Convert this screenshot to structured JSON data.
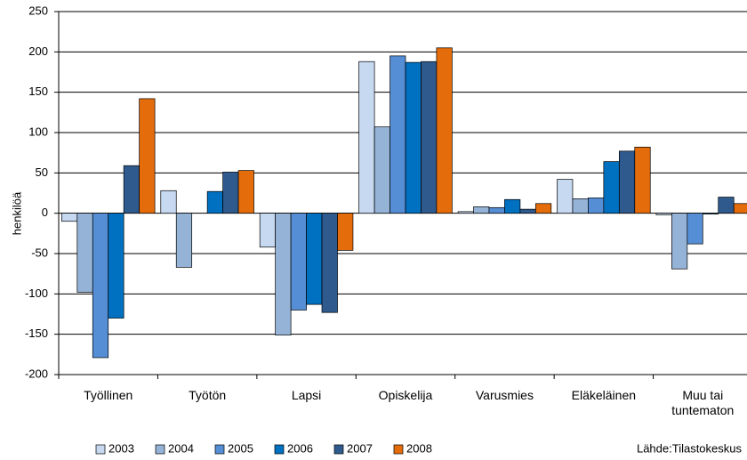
{
  "chart_data": {
    "type": "bar",
    "y_label": "henkilöä",
    "source": "Lähde:Tilastokeskus",
    "categories": [
      "Työllinen",
      "Työtön",
      "Lapsi",
      "Opiskelija",
      "Varusmies",
      "Eläkeläinen",
      "Muu tai tuntematon"
    ],
    "series": [
      {
        "name": "2003",
        "color": "#c6d9f1",
        "values": [
          -10,
          28,
          -42,
          188,
          2,
          42,
          -2
        ]
      },
      {
        "name": "2004",
        "color": "#95b3d7",
        "values": [
          -98,
          -67,
          -151,
          107,
          8,
          18,
          -69
        ]
      },
      {
        "name": "2005",
        "color": "#558ed5",
        "values": [
          -179,
          0,
          -120,
          195,
          7,
          19,
          -38
        ]
      },
      {
        "name": "2006",
        "color": "#0070c0",
        "values": [
          -130,
          27,
          -113,
          187,
          17,
          64,
          -1
        ]
      },
      {
        "name": "2007",
        "color": "#2e5a8e",
        "values": [
          59,
          51,
          -123,
          188,
          5,
          77,
          20
        ]
      },
      {
        "name": "2008",
        "color": "#e46c0a",
        "values": [
          142,
          53,
          -46,
          205,
          12,
          82,
          12
        ]
      }
    ],
    "ylim": [
      -200,
      250
    ],
    "yticks": [
      -200,
      -150,
      -100,
      -50,
      0,
      50,
      100,
      150,
      200,
      250
    ],
    "grid": true
  }
}
